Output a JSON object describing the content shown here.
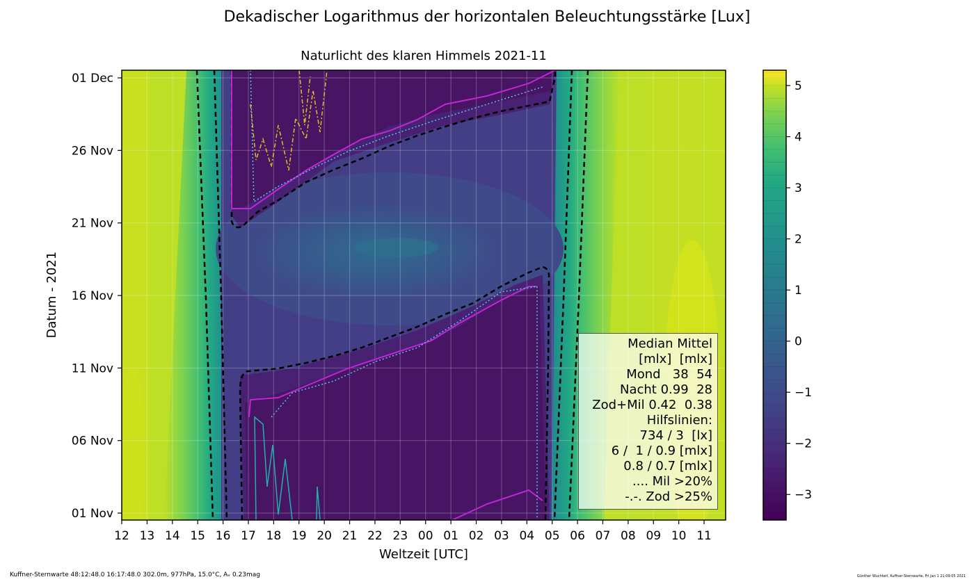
{
  "suptitle": "Dekadischer Logarithmus der horizontalen Beleuchtungsstärke [Lux]",
  "footer": {
    "left": "Kuffner-Sternwarte 48:12:48.0 16:17:48.0 302.0m,  977hPa, 15.0°C, Aᵥ 0.23mag",
    "right": "Günther Wuchterl, Kuffner-Sternwarte, Fri Jan  1 21:09:05 2021"
  },
  "legend": {
    "lines": [
      "Median Mittel",
      "[mlx]  [mlx]",
      "Mond   38  54",
      "Nacht 0.99  28",
      "Zod+Mil 0.42  0.38",
      "Hilfslinien:",
      "734 / 3  [lx]",
      "6 /  1 / 0.9 [mlx]",
      "0.8 / 0.7 [mlx]",
      ".... Mil >20%",
      "-.-. Zod >25%"
    ]
  },
  "chart_data": {
    "type": "heatmap",
    "title": "Naturlicht des klaren Himmels 2021-11",
    "xlabel": "Weltzeit [UTC]",
    "ylabel": "Datum - 2021",
    "x_ticks": [
      "12",
      "13",
      "14",
      "15",
      "16",
      "17",
      "18",
      "19",
      "20",
      "21",
      "22",
      "23",
      "00",
      "01",
      "02",
      "03",
      "04",
      "05",
      "06",
      "07",
      "08",
      "09",
      "10",
      "11"
    ],
    "y_ticks": [
      "01 Nov",
      "06 Nov",
      "11 Nov",
      "16 Nov",
      "21 Nov",
      "26 Nov",
      "01 Dec"
    ],
    "colorbar": {
      "ticks": [
        "5",
        "4",
        "3",
        "2",
        "1",
        "0",
        "−1",
        "−2",
        "−3"
      ],
      "range": [
        -3.5,
        5.3
      ],
      "colormap": "viridis"
    },
    "grid": true,
    "levels": {
      "day": 4.3,
      "twilight_low": -0.3,
      "moon_night": -2.0,
      "dark_night": -3.1
    },
    "contour_lines": [
      {
        "label": "734 lx",
        "style": "dashed"
      },
      {
        "label": "3 lx",
        "style": "dashed"
      },
      {
        "label": "6 mlx",
        "style": "dashed"
      },
      {
        "label": "Mil >20%",
        "style": "dotted"
      },
      {
        "label": "Zod >25%",
        "style": "dashdot"
      }
    ]
  }
}
